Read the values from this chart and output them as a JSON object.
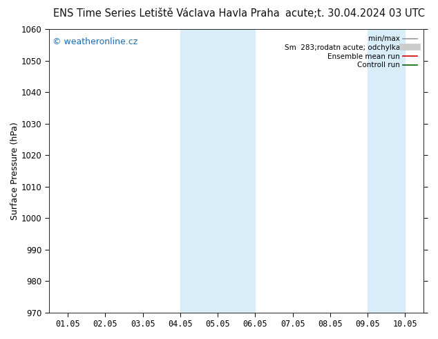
{
  "title_left": "ENS Time Series Letiště Václava Havla Praha",
  "title_right": "acute;t. 30.04.2024 03 UTC",
  "ylabel": "Surface Pressure (hPa)",
  "ylim": [
    970,
    1060
  ],
  "yticks": [
    970,
    980,
    990,
    1000,
    1010,
    1020,
    1030,
    1040,
    1050,
    1060
  ],
  "xtick_labels": [
    "01.05",
    "02.05",
    "03.05",
    "04.05",
    "05.05",
    "06.05",
    "07.05",
    "08.05",
    "09.05",
    "10.05"
  ],
  "xlim": [
    0.5,
    10.5
  ],
  "shade_bands": [
    {
      "xmin": 4.0,
      "xmax": 6.0
    },
    {
      "xmin": 9.0,
      "xmax": 10.0
    }
  ],
  "shade_color": "#d8edf8",
  "watermark": "© weatheronline.cz",
  "watermark_color": "#1a6bb5",
  "legend_items": [
    {
      "label": "min/max",
      "color": "#999999",
      "lw": 1.2,
      "linestyle": "-",
      "type": "line"
    },
    {
      "label": "Sm  283;rodatn acute; odchylka",
      "color": "#cccccc",
      "lw": 7,
      "linestyle": "-",
      "type": "line"
    },
    {
      "label": "Ensemble mean run",
      "color": "#cc0000",
      "lw": 1.2,
      "linestyle": "-",
      "type": "line"
    },
    {
      "label": "Controll run",
      "color": "#006600",
      "lw": 1.2,
      "linestyle": "-",
      "type": "line"
    }
  ],
  "background_color": "#ffffff",
  "title_fontsize": 10.5,
  "axis_fontsize": 9,
  "tick_fontsize": 8.5,
  "watermark_fontsize": 9
}
